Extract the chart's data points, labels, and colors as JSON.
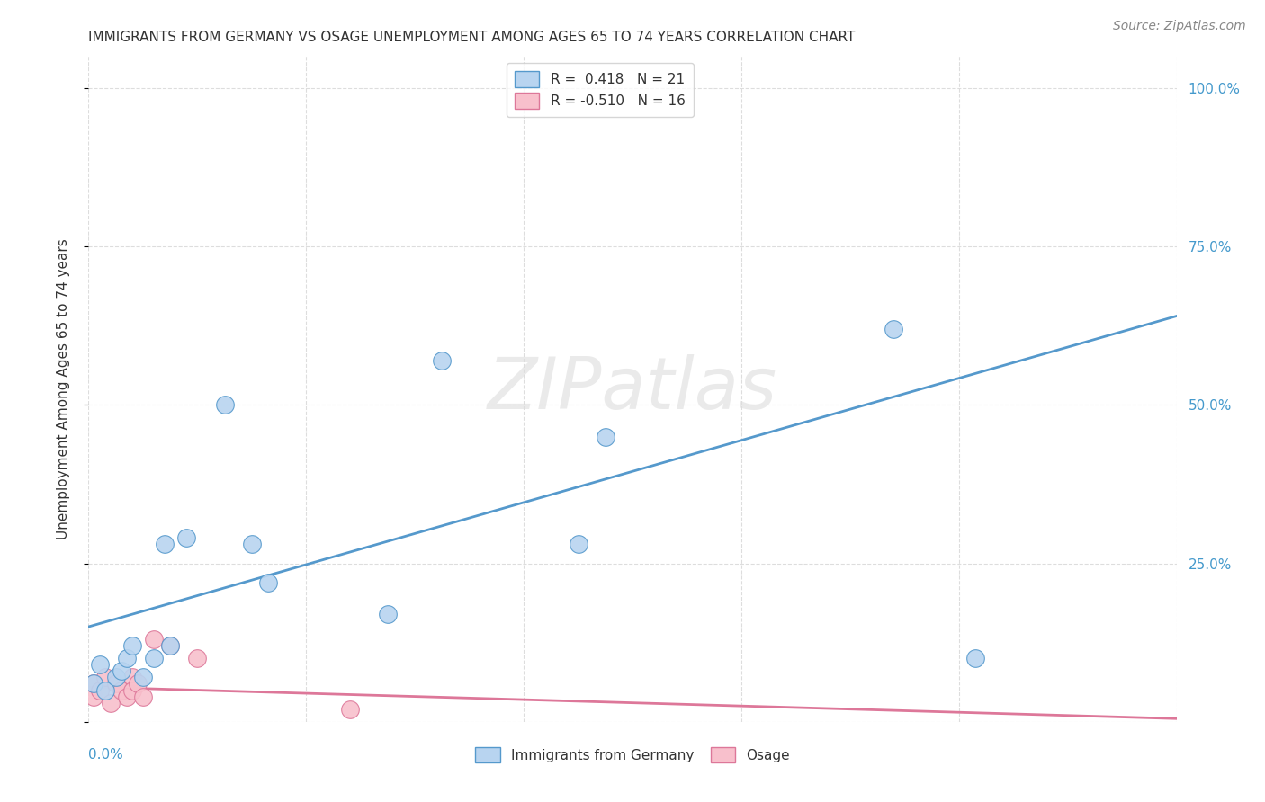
{
  "title": "IMMIGRANTS FROM GERMANY VS OSAGE UNEMPLOYMENT AMONG AGES 65 TO 74 YEARS CORRELATION CHART",
  "source": "Source: ZipAtlas.com",
  "ylabel": "Unemployment Among Ages 65 to 74 years",
  "xlim": [
    0.0,
    0.2
  ],
  "ylim": [
    0.0,
    1.05
  ],
  "yticks": [
    0.0,
    0.25,
    0.5,
    0.75,
    1.0
  ],
  "ytick_labels": [
    "",
    "25.0%",
    "50.0%",
    "75.0%",
    "100.0%"
  ],
  "xticks": [
    0.0,
    0.04,
    0.08,
    0.12,
    0.16,
    0.2
  ],
  "watermark": "ZIPatlas",
  "legend_r1": "R =  0.418   N = 21",
  "legend_r2": "R = -0.510   N = 16",
  "blue_fill": "#b8d4f0",
  "blue_edge": "#5599cc",
  "pink_fill": "#f8c0cc",
  "pink_edge": "#dd7799",
  "blue_line": "#5599cc",
  "pink_line": "#dd7799",
  "germany_scatter_x": [
    0.001,
    0.002,
    0.003,
    0.005,
    0.006,
    0.007,
    0.008,
    0.01,
    0.012,
    0.014,
    0.015,
    0.018,
    0.025,
    0.03,
    0.033,
    0.055,
    0.065,
    0.09,
    0.095,
    0.148,
    0.163
  ],
  "germany_scatter_y": [
    0.06,
    0.09,
    0.05,
    0.07,
    0.08,
    0.1,
    0.12,
    0.07,
    0.1,
    0.28,
    0.12,
    0.29,
    0.5,
    0.28,
    0.22,
    0.17,
    0.57,
    0.28,
    0.45,
    0.62,
    0.1
  ],
  "osage_scatter_x": [
    0.001,
    0.001,
    0.002,
    0.003,
    0.004,
    0.005,
    0.006,
    0.007,
    0.008,
    0.008,
    0.009,
    0.01,
    0.012,
    0.015,
    0.02,
    0.048
  ],
  "osage_scatter_y": [
    0.04,
    0.06,
    0.05,
    0.07,
    0.03,
    0.06,
    0.05,
    0.04,
    0.07,
    0.05,
    0.06,
    0.04,
    0.13,
    0.12,
    0.1,
    0.02
  ],
  "germany_line_x": [
    0.0,
    0.2
  ],
  "germany_line_y": [
    0.15,
    0.64
  ],
  "osage_line_x": [
    0.0,
    0.2
  ],
  "osage_line_y": [
    0.055,
    0.005
  ],
  "title_fontsize": 11,
  "tick_fontsize": 11,
  "label_fontsize": 11,
  "source_fontsize": 10,
  "background_color": "#ffffff",
  "grid_color": "#dddddd",
  "text_color": "#333333",
  "tick_color": "#4499cc"
}
